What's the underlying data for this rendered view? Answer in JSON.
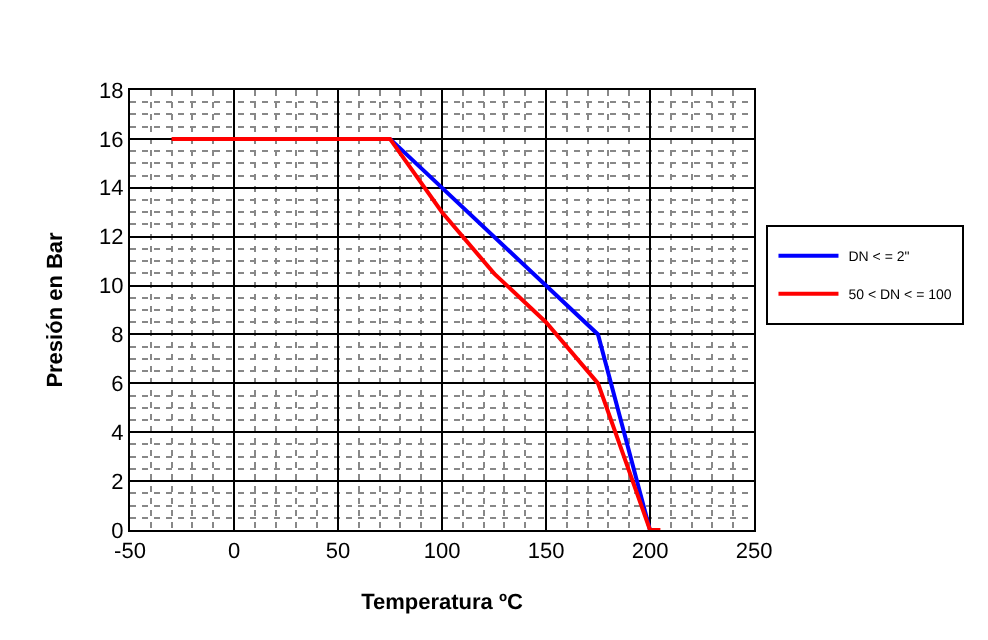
{
  "chart_data": {
    "type": "line",
    "xlabel": "Temperatura ºC",
    "ylabel": "Presión en Bar",
    "xlim": [
      -50,
      250
    ],
    "xticks": [
      -50,
      0,
      50,
      100,
      150,
      200,
      250
    ],
    "ylim": [
      0,
      18
    ],
    "yticks": [
      0,
      2,
      4,
      6,
      8,
      10,
      12,
      14,
      16,
      18
    ],
    "grid": true,
    "legend": "right",
    "marker": "none",
    "line_style": "solid",
    "series": [
      {
        "name": "DN < = 2\"",
        "color": "#0000ff",
        "x": [
          75,
          175,
          200
        ],
        "values": [
          16,
          8,
          0
        ]
      },
      {
        "name": "50 < DN < = 100",
        "color": "#ff0000",
        "x": [
          -30,
          75,
          100,
          125,
          150,
          175,
          200,
          205
        ],
        "values": [
          16,
          16,
          13,
          10.5,
          8.5,
          6,
          0,
          0
        ]
      }
    ]
  }
}
